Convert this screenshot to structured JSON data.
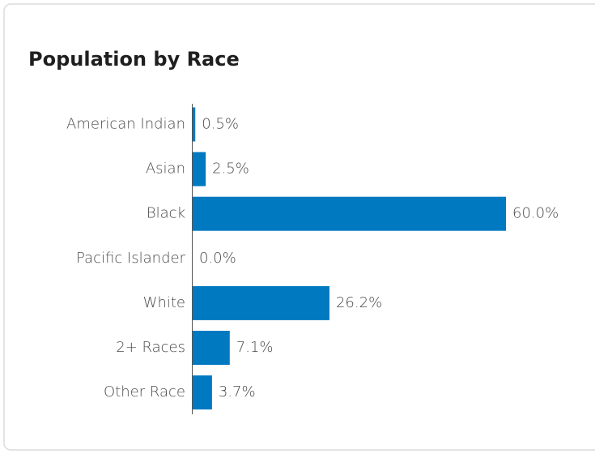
{
  "chart_data": {
    "type": "bar",
    "orientation": "horizontal",
    "title": "Population by Race",
    "categories": [
      "American Indian",
      "Asian",
      "Black",
      "Pacific Islander",
      "White",
      "2+ Races",
      "Other Race"
    ],
    "values": [
      0.5,
      2.5,
      60.0,
      0.0,
      26.2,
      7.1,
      3.7
    ],
    "value_labels": [
      "0.5%",
      "2.5%",
      "60.0%",
      "0.0%",
      "26.2%",
      "7.1%",
      "3.7%"
    ],
    "color": "#0079c1"
  }
}
